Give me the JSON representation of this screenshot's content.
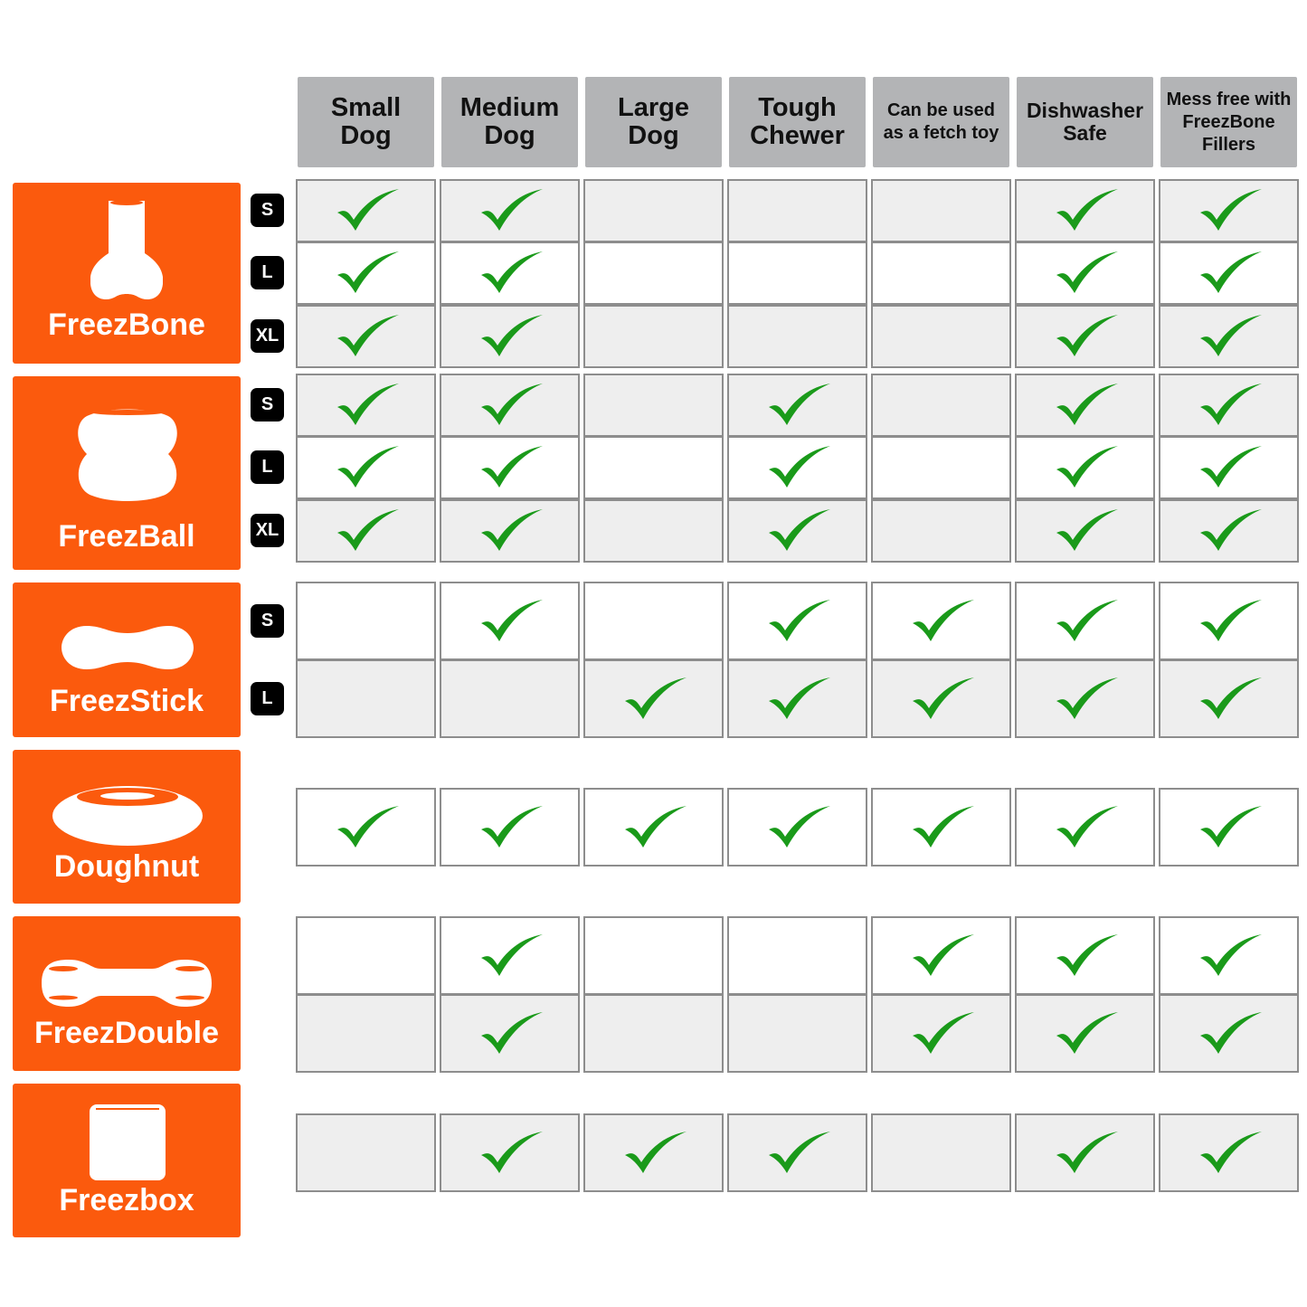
{
  "headers": [
    "Small\nDog",
    "Medium\nDog",
    "Large\nDog",
    "Tough\nChewer",
    "Can be used\nas a fetch toy",
    "Dishwasher\nSafe",
    "Mess free with\nFreezBone\nFillers"
  ],
  "colors": {
    "brand_orange": "#fb5a0d",
    "header_gray": "#b3b4b6",
    "check_green": "#1a9a1a",
    "row_gray": "#eeeeee"
  },
  "products": [
    {
      "name": "FreezBone",
      "icon": "bone-icon",
      "rows": [
        {
          "size": "S",
          "checks": [
            true,
            true,
            false,
            false,
            false,
            true,
            true
          ]
        },
        {
          "size": "L",
          "checks": [
            true,
            true,
            false,
            false,
            false,
            true,
            true
          ]
        },
        {
          "size": "XL",
          "checks": [
            true,
            true,
            false,
            false,
            false,
            true,
            true
          ]
        }
      ]
    },
    {
      "name": "FreezBall",
      "icon": "ball-icon",
      "rows": [
        {
          "size": "S",
          "checks": [
            true,
            true,
            false,
            true,
            false,
            true,
            true
          ]
        },
        {
          "size": "L",
          "checks": [
            true,
            true,
            false,
            true,
            false,
            true,
            true
          ]
        },
        {
          "size": "XL",
          "checks": [
            true,
            true,
            false,
            true,
            false,
            true,
            true
          ]
        }
      ]
    },
    {
      "name": "FreezStick",
      "icon": "stick-icon",
      "rows": [
        {
          "size": "S",
          "checks": [
            false,
            true,
            false,
            true,
            true,
            true,
            true
          ]
        },
        {
          "size": "L",
          "checks": [
            false,
            false,
            true,
            true,
            true,
            true,
            true
          ]
        }
      ]
    },
    {
      "name": "Doughnut",
      "icon": "doughnut-icon",
      "rows": [
        {
          "size": "",
          "checks": [
            true,
            true,
            true,
            true,
            true,
            true,
            true
          ]
        }
      ]
    },
    {
      "name": "FreezDouble",
      "icon": "double-icon",
      "rows": [
        {
          "size": "",
          "checks": [
            false,
            true,
            false,
            false,
            true,
            true,
            true
          ]
        },
        {
          "size": "",
          "checks": [
            false,
            true,
            false,
            false,
            true,
            true,
            true
          ]
        }
      ]
    },
    {
      "name": "Freezbox",
      "icon": "box-icon",
      "rows": [
        {
          "size": "",
          "checks": [
            false,
            true,
            true,
            true,
            false,
            true,
            true
          ]
        }
      ]
    }
  ]
}
